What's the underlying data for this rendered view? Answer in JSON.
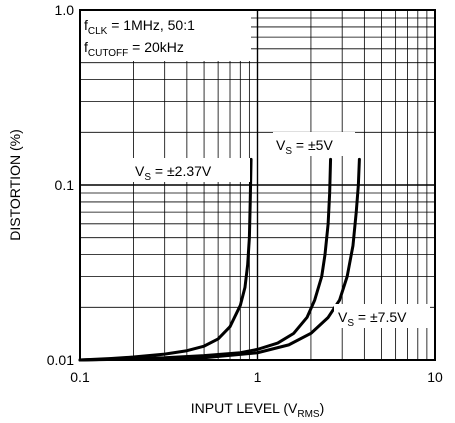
{
  "chart_data": {
    "type": "line",
    "title": "",
    "xlabel": "INPUT LEVEL (V",
    "xlabel_sub": "RMS",
    "xlabel_end": ")",
    "ylabel": "DISTORTION (%)",
    "x_scale": "log",
    "y_scale": "log",
    "xlim": [
      0.1,
      10
    ],
    "ylim": [
      0.01,
      1.0
    ],
    "grid": true,
    "legend": "none",
    "x_ticks": [
      {
        "value": 0.1,
        "label": "0.1"
      },
      {
        "value": 1,
        "label": "1"
      },
      {
        "value": 10,
        "label": "10"
      }
    ],
    "y_ticks": [
      {
        "value": 0.01,
        "label": "0.01"
      },
      {
        "value": 0.1,
        "label": "0.1"
      },
      {
        "value": 1.0,
        "label": "1.0"
      }
    ],
    "annotations": {
      "line1": {
        "main": "f",
        "sub": "CLK",
        "rest": " = 1MHz, 50:1"
      },
      "line2": {
        "main": "f",
        "sub": "CUTOFF",
        "rest": " = 20kHz"
      }
    },
    "series": [
      {
        "label": {
          "main": "V",
          "sub": "S",
          "rest": " = ±2.37V"
        },
        "points": [
          [
            0.1,
            0.01
          ],
          [
            0.15,
            0.0102
          ],
          [
            0.2,
            0.0104
          ],
          [
            0.3,
            0.0108
          ],
          [
            0.4,
            0.0113
          ],
          [
            0.5,
            0.012
          ],
          [
            0.6,
            0.0132
          ],
          [
            0.7,
            0.0155
          ],
          [
            0.8,
            0.0205
          ],
          [
            0.85,
            0.026
          ],
          [
            0.88,
            0.035
          ],
          [
            0.9,
            0.05
          ],
          [
            0.91,
            0.08
          ],
          [
            0.92,
            0.14
          ]
        ]
      },
      {
        "label": {
          "main": "V",
          "sub": "S",
          "rest": " = ±5V"
        },
        "points": [
          [
            0.1,
            0.01
          ],
          [
            0.3,
            0.0103
          ],
          [
            0.5,
            0.0106
          ],
          [
            0.8,
            0.011
          ],
          [
            1.0,
            0.0115
          ],
          [
            1.3,
            0.0125
          ],
          [
            1.6,
            0.0142
          ],
          [
            1.9,
            0.0175
          ],
          [
            2.1,
            0.022
          ],
          [
            2.3,
            0.03
          ],
          [
            2.4,
            0.04
          ],
          [
            2.5,
            0.06
          ],
          [
            2.55,
            0.09
          ],
          [
            2.58,
            0.14
          ]
        ]
      },
      {
        "label": {
          "main": "V",
          "sub": "S",
          "rest": " = ±7.5V"
        },
        "points": [
          [
            0.1,
            0.01
          ],
          [
            0.5,
            0.0103
          ],
          [
            1.0,
            0.011
          ],
          [
            1.5,
            0.0122
          ],
          [
            2.0,
            0.0142
          ],
          [
            2.5,
            0.0175
          ],
          [
            2.9,
            0.022
          ],
          [
            3.2,
            0.03
          ],
          [
            3.45,
            0.045
          ],
          [
            3.6,
            0.07
          ],
          [
            3.7,
            0.1
          ],
          [
            3.75,
            0.14
          ]
        ]
      }
    ]
  }
}
